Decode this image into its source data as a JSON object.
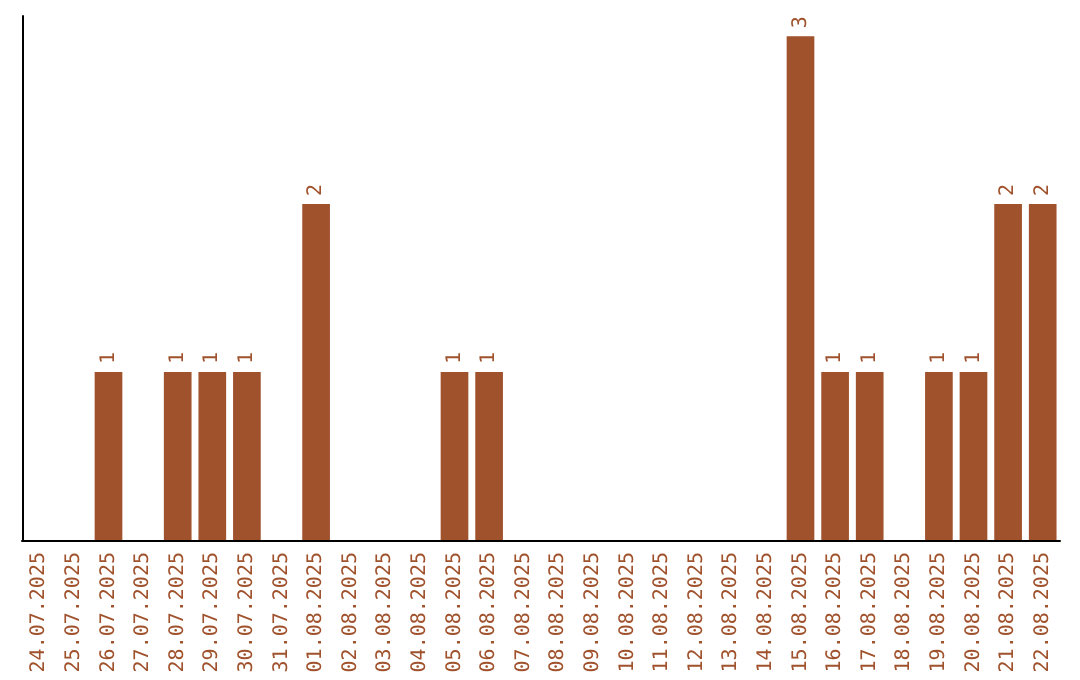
{
  "chart_data": {
    "type": "bar",
    "categories": [
      "24.07.2025",
      "25.07.2025",
      "26.07.2025",
      "27.07.2025",
      "28.07.2025",
      "29.07.2025",
      "30.07.2025",
      "31.07.2025",
      "01.08.2025",
      "02.08.2025",
      "03.08.2025",
      "04.08.2025",
      "05.08.2025",
      "06.08.2025",
      "07.08.2025",
      "08.08.2025",
      "09.08.2025",
      "10.08.2025",
      "11.08.2025",
      "12.08.2025",
      "13.08.2025",
      "14.08.2025",
      "15.08.2025",
      "16.08.2025",
      "17.08.2025",
      "18.08.2025",
      "19.08.2025",
      "20.08.2025",
      "21.08.2025",
      "22.08.2025"
    ],
    "values": [
      0,
      0,
      1,
      0,
      1,
      1,
      1,
      0,
      2,
      0,
      0,
      0,
      1,
      1,
      0,
      0,
      0,
      0,
      0,
      0,
      0,
      0,
      3,
      1,
      1,
      0,
      1,
      1,
      2,
      2
    ],
    "value_labels": [
      null,
      null,
      "1",
      null,
      "1",
      "1",
      "1",
      null,
      "2",
      null,
      null,
      null,
      "1",
      "1",
      null,
      null,
      null,
      null,
      null,
      null,
      null,
      null,
      "3",
      "1",
      "1",
      null,
      "1",
      "1",
      "2",
      "2"
    ],
    "color": "#a0522d",
    "tick_labels": "x"
  }
}
